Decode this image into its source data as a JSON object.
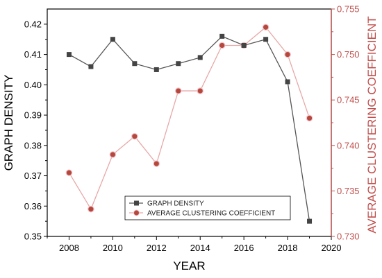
{
  "chart_data": {
    "type": "line",
    "xlabel": "YEAR",
    "x": [
      2008,
      2009,
      2010,
      2011,
      2012,
      2013,
      2014,
      2015,
      2016,
      2017,
      2018,
      2019
    ],
    "xlim": [
      2007,
      2020
    ],
    "xticks": [
      2008,
      2010,
      2012,
      2014,
      2016,
      2018,
      2020
    ],
    "series": [
      {
        "name": "GRAPH DENSITY",
        "axis": "left",
        "marker": "square",
        "color": "#444444",
        "line_color": "#555555",
        "values": [
          0.41,
          0.406,
          0.415,
          0.407,
          0.405,
          0.407,
          0.409,
          0.416,
          0.413,
          0.415,
          0.401,
          0.355
        ]
      },
      {
        "name": "AVERAGE CLUSTERING COEFFICIENT",
        "axis": "right",
        "marker": "circle",
        "color": "#b5473c",
        "line_color": "#e8a7a7",
        "values": [
          0.737,
          0.733,
          0.739,
          0.741,
          0.738,
          0.746,
          0.746,
          0.751,
          0.751,
          0.753,
          0.75,
          0.743
        ]
      }
    ],
    "y_left": {
      "label": "GRAPH DENSITY",
      "ylim": [
        0.35,
        0.425
      ],
      "ticks": [
        0.35,
        0.36,
        0.37,
        0.38,
        0.39,
        0.4,
        0.41,
        0.42
      ],
      "tick_labels": [
        "0.35",
        "0.36",
        "0.37",
        "0.38",
        "0.39",
        "0.40",
        "0.41",
        "0.42"
      ],
      "color": "#000000"
    },
    "y_right": {
      "label": "AVERAGE CLUSTERING COEFFICIENT",
      "ylim": [
        0.73,
        0.755
      ],
      "ticks": [
        0.73,
        0.735,
        0.74,
        0.745,
        0.75,
        0.755
      ],
      "tick_labels": [
        "0.730",
        "0.735",
        "0.740",
        "0.745",
        "0.750",
        "0.755"
      ],
      "color": "#c0504d"
    },
    "legend_position": "bottom-center",
    "grid": false
  }
}
